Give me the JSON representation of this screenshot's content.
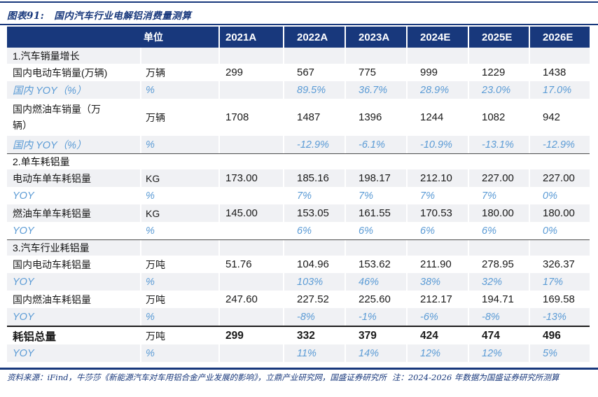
{
  "title": {
    "prefix": "图表91:",
    "text": "国内汽车行业电解铝消费量测算"
  },
  "table": {
    "unit_header": "单位",
    "year_headers": [
      "2021A",
      "2022A",
      "2023A",
      "2024E",
      "2025E",
      "2026E"
    ],
    "rows": [
      {
        "type": "section",
        "label": "1.汽车销量增长",
        "unit": "",
        "values": [
          "",
          "",
          "",
          "",
          "",
          ""
        ]
      },
      {
        "type": "data",
        "label": "国内电动车销量(万辆)",
        "unit": "万辆",
        "values": [
          "299",
          "567",
          "775",
          "999",
          "1229",
          "1438"
        ]
      },
      {
        "type": "yoy",
        "label": "国内 YOY（%）",
        "unit": "%",
        "values": [
          "",
          "89.5%",
          "36.7%",
          "28.9%",
          "23.0%",
          "17.0%"
        ]
      },
      {
        "type": "data",
        "tall": true,
        "label": "国内燃油车销量（万辆）",
        "unit": "万辆",
        "values": [
          "1708",
          "1487",
          "1396",
          "1244",
          "1082",
          "942"
        ]
      },
      {
        "type": "yoy",
        "label": "国内 YOY（%）",
        "unit": "%",
        "values": [
          "",
          "-12.9%",
          "-6.1%",
          "-10.9%",
          "-13.1%",
          "-12.9%"
        ]
      },
      {
        "type": "section",
        "rule_above": true,
        "label": "2.单车耗铝量",
        "unit": "",
        "values": [
          "",
          "",
          "",
          "",
          "",
          ""
        ]
      },
      {
        "type": "data",
        "label": "电动车单车耗铝量",
        "unit": "KG",
        "values": [
          "173.00",
          "185.16",
          "198.17",
          "212.10",
          "227.00",
          "227.00"
        ]
      },
      {
        "type": "yoy",
        "label": "YOY",
        "unit": "%",
        "values": [
          "",
          "7%",
          "7%",
          "7%",
          "7%",
          "0%"
        ]
      },
      {
        "type": "data",
        "label": "燃油车单车耗铝量",
        "unit": "KG",
        "values": [
          "145.00",
          "153.05",
          "161.55",
          "170.53",
          "180.00",
          "180.00"
        ]
      },
      {
        "type": "yoy",
        "label": "YOY",
        "unit": "%",
        "values": [
          "",
          "6%",
          "6%",
          "6%",
          "6%",
          "0%"
        ]
      },
      {
        "type": "section",
        "rule_above": true,
        "label": "3.汽车行业耗铝量",
        "unit": "",
        "values": [
          "",
          "",
          "",
          "",
          "",
          ""
        ]
      },
      {
        "type": "data",
        "label": "国内电动车耗铝量",
        "unit": "万吨",
        "values": [
          "51.76",
          "104.96",
          "153.62",
          "211.90",
          "278.95",
          "326.37"
        ]
      },
      {
        "type": "yoy",
        "label": "YOY",
        "unit": "%",
        "values": [
          "",
          "103%",
          "46%",
          "38%",
          "32%",
          "17%"
        ]
      },
      {
        "type": "data",
        "label": "国内燃油车耗铝量",
        "unit": "万吨",
        "values": [
          "247.60",
          "227.52",
          "225.60",
          "212.17",
          "194.71",
          "169.58"
        ]
      },
      {
        "type": "yoy",
        "label": "YOY",
        "unit": "%",
        "values": [
          "",
          "-8%",
          "-1%",
          "-6%",
          "-8%",
          "-13%"
        ]
      },
      {
        "type": "total",
        "rule_strong": true,
        "label": "耗铝总量",
        "unit": "万吨",
        "values": [
          "299",
          "332",
          "379",
          "424",
          "474",
          "496"
        ]
      },
      {
        "type": "yoy",
        "label": "YOY",
        "unit": "%",
        "values": [
          "",
          "11%",
          "14%",
          "12%",
          "12%",
          "5%"
        ]
      }
    ]
  },
  "footer": {
    "source": "资料来源：iFind，牛莎莎《新能源汽车对车用铝合金产业发展的影响》，立鼎产业研究网，国盛证券研究所",
    "note": "注：2024-2026 年数据为国盛证券研究所测算"
  },
  "colors": {
    "header_bg": "#18387C",
    "title_navy": "#18387C",
    "yoy_blue": "#5B9BD5",
    "stripe_gray": "#F0F1F4"
  }
}
